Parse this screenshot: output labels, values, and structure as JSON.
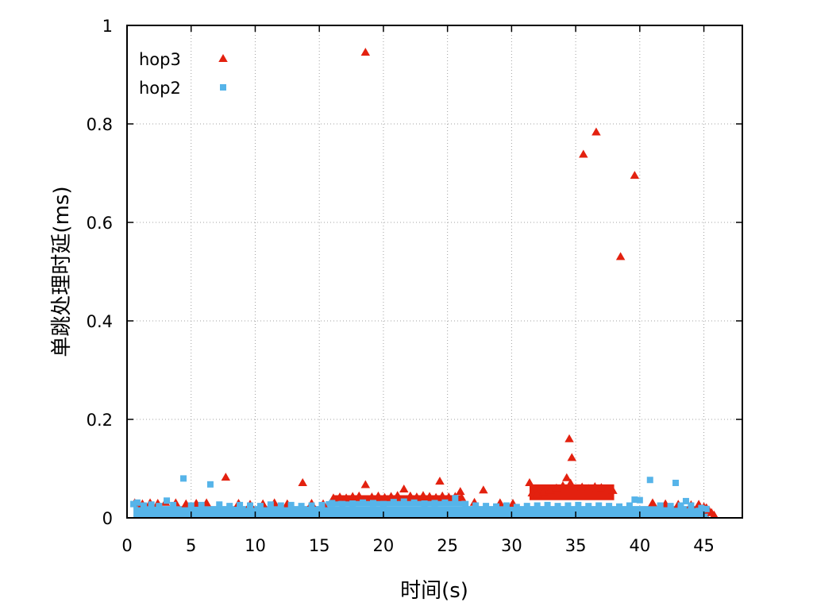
{
  "chart_data": {
    "type": "scatter",
    "title": "",
    "xlabel": "时间(s)",
    "ylabel": "单跳处理时延(ms)",
    "xlim": [
      0,
      48
    ],
    "ylim": [
      0,
      1
    ],
    "x_ticks": [
      0,
      5,
      10,
      15,
      20,
      25,
      30,
      35,
      40,
      45
    ],
    "y_ticks": [
      0,
      0.2,
      0.4,
      0.6,
      0.8,
      1
    ],
    "y_tick_labels": [
      "0",
      "0.2",
      "0.4",
      "0.6",
      "0.8",
      "1"
    ],
    "grid": true,
    "legend_position": "top-left",
    "series": [
      {
        "name": "hop3",
        "color": "#e3210f",
        "marker": "triangle",
        "x": [
          0.6,
          1.2,
          1.8,
          2.4,
          3.0,
          3.8,
          4.6,
          5.4,
          6.2,
          7.7,
          8.7,
          9.6,
          10.6,
          11.5,
          12.5,
          13.7,
          14.4,
          15.3,
          16.1,
          16.6,
          17.1,
          17.6,
          18.1,
          18.6,
          18.6,
          19.1,
          19.6,
          20.1,
          20.6,
          21.1,
          21.6,
          22.1,
          22.6,
          23.1,
          23.6,
          24.1,
          24.4,
          24.6,
          25.1,
          25.6,
          26.0,
          26.1,
          27.1,
          27.8,
          29.1,
          30.1,
          31.4,
          31.6,
          32.0,
          32.5,
          33.0,
          33.5,
          34.0,
          34.3,
          34.5,
          34.6,
          34.7,
          35.0,
          35.5,
          35.6,
          36.0,
          36.5,
          36.6,
          37.0,
          37.5,
          37.9,
          38.5,
          39.6,
          41.0,
          42.0,
          43.0,
          44.0,
          44.6,
          45.0,
          45.2,
          45.4,
          45.6,
          45.8
        ],
        "y": [
          0.03,
          0.028,
          0.03,
          0.029,
          0.031,
          0.03,
          0.028,
          0.029,
          0.03,
          0.082,
          0.029,
          0.027,
          0.028,
          0.03,
          0.028,
          0.071,
          0.029,
          0.028,
          0.04,
          0.042,
          0.04,
          0.043,
          0.044,
          0.945,
          0.067,
          0.042,
          0.044,
          0.041,
          0.043,
          0.045,
          0.058,
          0.044,
          0.042,
          0.045,
          0.043,
          0.041,
          0.074,
          0.044,
          0.042,
          0.043,
          0.053,
          0.041,
          0.031,
          0.056,
          0.03,
          0.029,
          0.071,
          0.05,
          0.047,
          0.052,
          0.055,
          0.06,
          0.065,
          0.081,
          0.16,
          0.07,
          0.122,
          0.058,
          0.062,
          0.738,
          0.059,
          0.063,
          0.783,
          0.061,
          0.058,
          0.055,
          0.53,
          0.695,
          0.03,
          0.028,
          0.027,
          0.026,
          0.027,
          0.022,
          0.02,
          0.015,
          0.01,
          0.005
        ]
      },
      {
        "name": "hop2",
        "color": "#56b4e9",
        "marker": "square",
        "x": [
          0.5,
          0.8,
          1.3,
          1.9,
          2.5,
          3.1,
          3.6,
          4.4,
          5.0,
          5.8,
          6.5,
          7.2,
          8.0,
          8.8,
          9.6,
          10.4,
          11.2,
          12.0,
          12.8,
          13.6,
          14.4,
          15.2,
          16.0,
          16.8,
          17.6,
          18.4,
          19.2,
          20.0,
          20.8,
          21.6,
          22.4,
          23.2,
          24.0,
          24.8,
          25.6,
          26.4,
          27.2,
          28.0,
          28.8,
          29.6,
          30.4,
          31.2,
          32.0,
          32.8,
          33.6,
          34.4,
          35.2,
          36.0,
          36.8,
          37.6,
          38.4,
          39.2,
          39.6,
          40.0,
          40.8,
          41.6,
          42.4,
          42.8,
          43.2,
          43.6,
          44.0,
          44.8,
          45.2
        ],
        "y": [
          0.028,
          0.031,
          0.025,
          0.027,
          0.024,
          0.035,
          0.026,
          0.08,
          0.025,
          0.026,
          0.068,
          0.027,
          0.024,
          0.026,
          0.025,
          0.024,
          0.027,
          0.025,
          0.026,
          0.024,
          0.025,
          0.026,
          0.03,
          0.028,
          0.029,
          0.031,
          0.03,
          0.028,
          0.032,
          0.033,
          0.031,
          0.029,
          0.03,
          0.031,
          0.04,
          0.028,
          0.025,
          0.024,
          0.023,
          0.025,
          0.022,
          0.024,
          0.025,
          0.026,
          0.024,
          0.025,
          0.026,
          0.024,
          0.025,
          0.024,
          0.023,
          0.025,
          0.037,
          0.036,
          0.077,
          0.025,
          0.024,
          0.071,
          0.025,
          0.034,
          0.025,
          0.02,
          0.018
        ]
      }
    ]
  }
}
